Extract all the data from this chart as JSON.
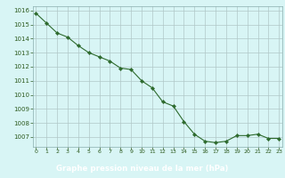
{
  "hours": [
    0,
    1,
    2,
    3,
    4,
    5,
    6,
    7,
    8,
    9,
    10,
    11,
    12,
    13,
    14,
    15,
    16,
    17,
    18,
    19,
    20,
    21,
    22,
    23
  ],
  "pressure": [
    1015.8,
    1015.1,
    1014.4,
    1014.1,
    1013.5,
    1013.0,
    1012.7,
    1012.4,
    1011.9,
    1011.8,
    1011.0,
    1010.5,
    1009.5,
    1009.2,
    1008.1,
    1007.2,
    1006.7,
    1006.6,
    1006.7,
    1007.1,
    1007.1,
    1007.2,
    1006.9,
    1006.9
  ],
  "ylim": [
    1006.3,
    1016.3
  ],
  "yticks": [
    1007,
    1008,
    1009,
    1010,
    1011,
    1012,
    1013,
    1014,
    1015,
    1016
  ],
  "xticks": [
    0,
    1,
    2,
    3,
    4,
    5,
    6,
    7,
    8,
    9,
    10,
    11,
    12,
    13,
    14,
    15,
    16,
    17,
    18,
    19,
    20,
    21,
    22,
    23
  ],
  "line_color": "#2d6a2d",
  "marker": "D",
  "marker_size": 2.2,
  "bg_color": "#d8f5f5",
  "grid_color": "#b0c8c8",
  "xlabel": "Graphe pression niveau de la mer (hPa)",
  "xlabel_color": "white",
  "xlabel_bg": "#2d5a1e",
  "tick_color": "#2d5a1e",
  "spine_color": "#8aaeae"
}
